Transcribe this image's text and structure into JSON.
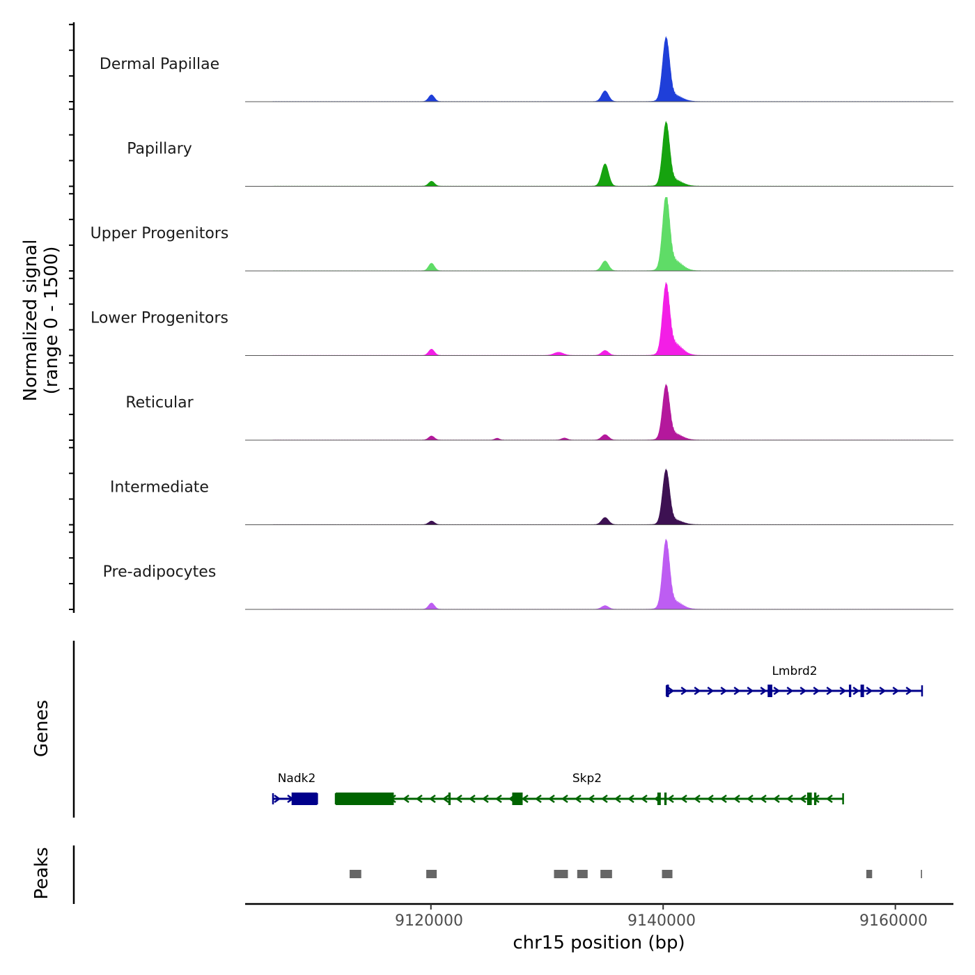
{
  "chart_data": {
    "type": "area",
    "title": "",
    "ylabel_line1": "Normalized signal",
    "ylabel_line2": "(range 0 - 1500)",
    "ylim": [
      0,
      1500
    ],
    "xlabel": "chr15 position (bp)",
    "xlim": [
      9104000,
      9165000
    ],
    "xticks": [
      9120000,
      9140000,
      9160000
    ],
    "xtick_labels": [
      "9120000",
      "9140000",
      "9160000"
    ],
    "tracks": [
      {
        "name": "Dermal Papillae",
        "color": "#1f3fd9",
        "peaks": [
          {
            "pos": 9120050,
            "height": 150,
            "width": 250
          },
          {
            "pos": 9135000,
            "height": 240,
            "width": 300
          },
          {
            "pos": 9140250,
            "height": 1350,
            "width": 300
          },
          {
            "pos": 9140900,
            "height": 160,
            "width": 700
          }
        ]
      },
      {
        "name": "Papillary",
        "color": "#16a30f",
        "peaks": [
          {
            "pos": 9120050,
            "height": 110,
            "width": 250
          },
          {
            "pos": 9135000,
            "height": 500,
            "width": 300
          },
          {
            "pos": 9140250,
            "height": 1350,
            "width": 300
          },
          {
            "pos": 9140900,
            "height": 160,
            "width": 700
          }
        ]
      },
      {
        "name": "Upper Progenitors",
        "color": "#5fdc67",
        "peaks": [
          {
            "pos": 9120050,
            "height": 170,
            "width": 250
          },
          {
            "pos": 9135000,
            "height": 220,
            "width": 300
          },
          {
            "pos": 9140250,
            "height": 1560,
            "width": 300
          },
          {
            "pos": 9140900,
            "height": 260,
            "width": 700
          }
        ]
      },
      {
        "name": "Lower Progenitors",
        "color": "#f31ee6",
        "peaks": [
          {
            "pos": 9120050,
            "height": 140,
            "width": 250
          },
          {
            "pos": 9131000,
            "height": 70,
            "width": 400
          },
          {
            "pos": 9135000,
            "height": 110,
            "width": 300
          },
          {
            "pos": 9140250,
            "height": 1450,
            "width": 300
          },
          {
            "pos": 9140900,
            "height": 300,
            "width": 700
          }
        ]
      },
      {
        "name": "Reticular",
        "color": "#b4189c",
        "peaks": [
          {
            "pos": 9120050,
            "height": 90,
            "width": 250
          },
          {
            "pos": 9125700,
            "height": 40,
            "width": 200
          },
          {
            "pos": 9131500,
            "height": 45,
            "width": 250
          },
          {
            "pos": 9135000,
            "height": 120,
            "width": 300
          },
          {
            "pos": 9140250,
            "height": 1150,
            "width": 300
          },
          {
            "pos": 9140900,
            "height": 160,
            "width": 700
          }
        ]
      },
      {
        "name": "Intermediate",
        "color": "#3d1152",
        "peaks": [
          {
            "pos": 9120050,
            "height": 80,
            "width": 250
          },
          {
            "pos": 9135000,
            "height": 160,
            "width": 300
          },
          {
            "pos": 9140250,
            "height": 1170,
            "width": 300
          },
          {
            "pos": 9140900,
            "height": 120,
            "width": 700
          }
        ]
      },
      {
        "name": "Pre-adipocytes",
        "color": "#bd5df2",
        "peaks": [
          {
            "pos": 9120050,
            "height": 140,
            "width": 250
          },
          {
            "pos": 9135000,
            "height": 80,
            "width": 300
          },
          {
            "pos": 9140250,
            "height": 1450,
            "width": 300
          },
          {
            "pos": 9140900,
            "height": 200,
            "width": 700
          }
        ]
      }
    ],
    "genes_label": "Genes",
    "genes": [
      {
        "name": "Lmbrd2",
        "strand": "+",
        "start": 9140300,
        "end": 9162300,
        "row": 0,
        "color": "#00008b",
        "exons": [
          {
            "start": 9140300,
            "end": 9140500
          },
          {
            "start": 9149000,
            "end": 9149400
          },
          {
            "start": 9156000,
            "end": 9156200
          },
          {
            "start": 9157000,
            "end": 9157300
          }
        ]
      },
      {
        "name": "Nadk2",
        "strand": "+",
        "start": 9106400,
        "end": 9110200,
        "row": 1,
        "color": "#00008b",
        "exons": [
          {
            "start": 9108000,
            "end": 9110200
          }
        ]
      },
      {
        "name": "Skp2",
        "strand": "-",
        "start": 9111800,
        "end": 9155500,
        "row": 1,
        "color": "#006400",
        "exons": [
          {
            "start": 9111800,
            "end": 9116800
          },
          {
            "start": 9121500,
            "end": 9121700
          },
          {
            "start": 9127000,
            "end": 9127900
          },
          {
            "start": 9139500,
            "end": 9139800
          },
          {
            "start": 9140100,
            "end": 9140300
          },
          {
            "start": 9152400,
            "end": 9152800
          },
          {
            "start": 9153000,
            "end": 9153200
          }
        ]
      }
    ],
    "peaks_label": "Peaks",
    "peak_color": "#666666",
    "called_peaks": [
      {
        "start": 9113000,
        "end": 9114000
      },
      {
        "start": 9119600,
        "end": 9120500
      },
      {
        "start": 9130600,
        "end": 9131800
      },
      {
        "start": 9132600,
        "end": 9133500
      },
      {
        "start": 9134600,
        "end": 9135600
      },
      {
        "start": 9139900,
        "end": 9140800
      },
      {
        "start": 9157500,
        "end": 9158000
      },
      {
        "start": 9162200,
        "end": 9162300
      }
    ]
  }
}
